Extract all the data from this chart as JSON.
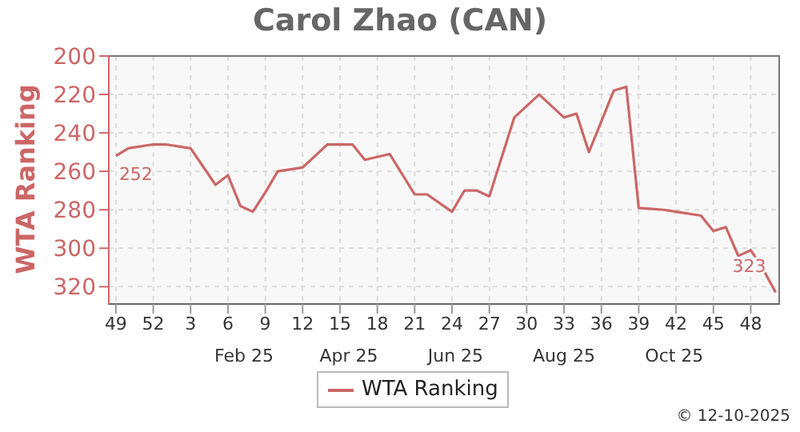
{
  "chart_data": {
    "type": "line",
    "title": "Carol Zhao (CAN)",
    "ylabel": "WTA Ranking",
    "x": [
      "2024-12-02",
      "2024-12-09",
      "2024-12-23",
      "2024-12-30",
      "2025-01-13",
      "2025-01-27",
      "2025-02-03",
      "2025-02-10",
      "2025-02-17",
      "2025-02-24",
      "2025-03-03",
      "2025-03-17",
      "2025-03-31",
      "2025-04-14",
      "2025-04-21",
      "2025-05-05",
      "2025-05-19",
      "2025-05-26",
      "2025-06-09",
      "2025-06-16",
      "2025-06-23",
      "2025-06-30",
      "2025-07-14",
      "2025-07-28",
      "2025-08-11",
      "2025-08-18",
      "2025-08-25",
      "2025-09-08",
      "2025-09-15",
      "2025-09-22",
      "2025-10-06",
      "2025-10-13",
      "2025-10-27",
      "2025-11-03",
      "2025-11-10",
      "2025-11-17",
      "2025-11-24",
      "2025-12-01",
      "2025-12-08"
    ],
    "series": [
      {
        "name": "WTA Ranking",
        "color": "#cc6666",
        "values": [
          252,
          248,
          246,
          246,
          248,
          267,
          262,
          278,
          281,
          271,
          260,
          258,
          246,
          246,
          254,
          251,
          272,
          272,
          281,
          270,
          270,
          273,
          232,
          220,
          232,
          230,
          250,
          218,
          216,
          279,
          280,
          281,
          283,
          291,
          289,
          304,
          301,
          311,
          323
        ],
        "value_labels": [
          "252",
          null,
          null,
          null,
          null,
          null,
          null,
          null,
          null,
          null,
          null,
          null,
          null,
          null,
          null,
          null,
          null,
          null,
          null,
          null,
          null,
          null,
          null,
          null,
          null,
          null,
          null,
          null,
          null,
          null,
          null,
          null,
          null,
          null,
          null,
          null,
          null,
          null,
          "323"
        ]
      }
    ],
    "xlim": [
      "2024-11-28",
      "2025-12-10"
    ],
    "xticks": [
      {
        "value": "2024-12-02",
        "label": "49"
      },
      {
        "value": "2024-12-23",
        "label": "52"
      },
      {
        "value": "2025-01-13",
        "label": "3"
      },
      {
        "value": "2025-02-03",
        "label": "6"
      },
      {
        "value": "2025-02-24",
        "label": "9"
      },
      {
        "value": "2025-03-17",
        "label": "12"
      },
      {
        "value": "2025-04-07",
        "label": "15"
      },
      {
        "value": "2025-04-28",
        "label": "18"
      },
      {
        "value": "2025-05-19",
        "label": "21"
      },
      {
        "value": "2025-06-09",
        "label": "24"
      },
      {
        "value": "2025-06-30",
        "label": "27"
      },
      {
        "value": "2025-07-21",
        "label": "30"
      },
      {
        "value": "2025-08-11",
        "label": "33"
      },
      {
        "value": "2025-09-01",
        "label": "36"
      },
      {
        "value": "2025-09-22",
        "label": "39"
      },
      {
        "value": "2025-10-13",
        "label": "42"
      },
      {
        "value": "2025-11-03",
        "label": "45"
      },
      {
        "value": "2025-11-24",
        "label": "48"
      }
    ],
    "x2lim": [
      "2024-11-28",
      "2025-12-10"
    ],
    "x2ticks": [
      {
        "value": "2025-02-12",
        "label": "Feb 25"
      },
      {
        "value": "2025-04-12",
        "label": "Apr 25"
      },
      {
        "value": "2025-06-11",
        "label": "Jun 25"
      },
      {
        "value": "2025-08-11",
        "label": "Aug 25"
      },
      {
        "value": "2025-10-12",
        "label": "Oct 25"
      }
    ],
    "ylim": [
      329,
      200
    ],
    "yticks": [
      200,
      220,
      240,
      260,
      280,
      300,
      320
    ],
    "grid": true,
    "legend": "bottom",
    "annotations": [
      "© 12-10-2025"
    ]
  }
}
